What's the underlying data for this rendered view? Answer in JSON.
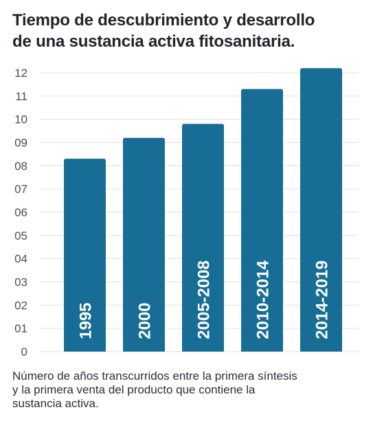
{
  "chart_data": {
    "type": "bar",
    "title_lines": [
      "Tiempo de descubrimiento y desarrollo",
      "de una sustancia activa fitosanitaria."
    ],
    "categories": [
      "1995",
      "2000",
      "2005-2008",
      "2010-2014",
      "2014-2019"
    ],
    "values": [
      8.3,
      9.2,
      9.8,
      11.3,
      12.2
    ],
    "yticks": [
      "0",
      "01",
      "02",
      "03",
      "04",
      "05",
      "06",
      "07",
      "08",
      "09",
      "10",
      "11",
      "12"
    ],
    "ylim": [
      0,
      12
    ],
    "grid": true,
    "bar_color": "#176d95",
    "caption_lines": [
      "Número de años transcurridos entre la primera síntesis",
      "y la primera venta del producto que contiene la",
      "sustancia activa."
    ]
  }
}
